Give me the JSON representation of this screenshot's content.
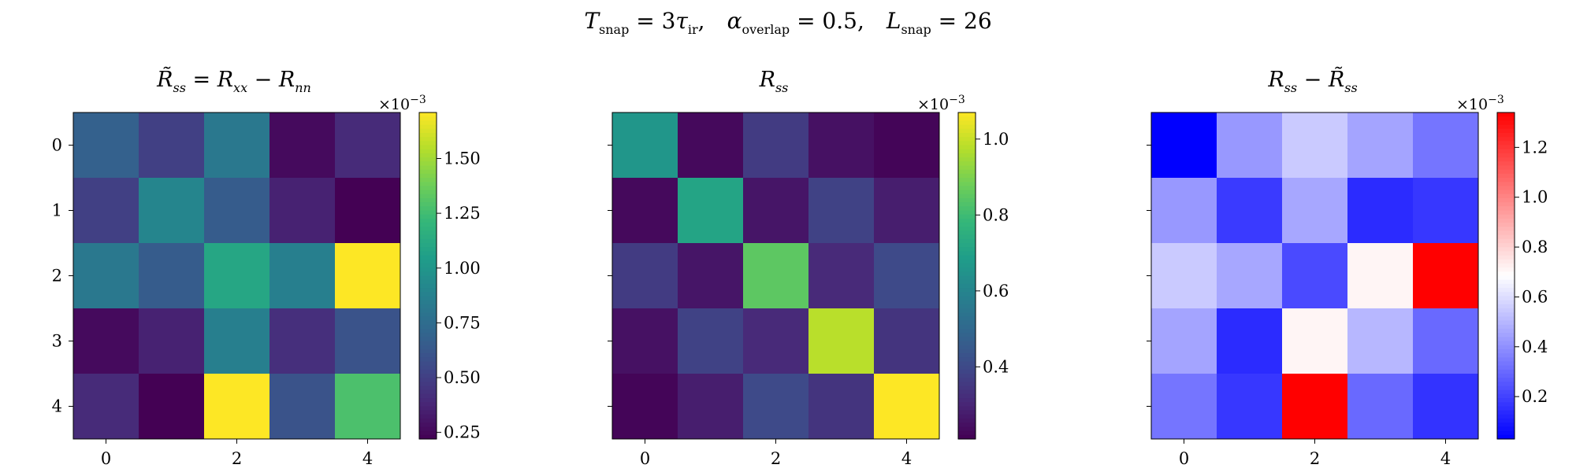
{
  "figure": {
    "suptitle": {
      "t_var": "T",
      "t_sub": "snap",
      "t_eq": " = 3",
      "tau_var": "τ",
      "tau_sub": "ir",
      "t_sep": ",",
      "a_var": "α",
      "a_sub": "overlap",
      "a_eq": " = 0.5",
      "a_sep": ",",
      "l_var": "L",
      "l_sub": "snap",
      "l_eq": " = 26"
    }
  },
  "chart_data": [
    {
      "type": "heatmap",
      "title_parts": {
        "r1": "R̃",
        "r1_sub": "ss",
        "eq": " = ",
        "r2": "R",
        "r2_sub": "xx",
        "minus": " − ",
        "r3": "R",
        "r3_sub": "nn"
      },
      "colormap": "viridis",
      "vmin": 0.22,
      "vmax": 1.71,
      "exponent": {
        "base": "×10",
        "sup": "−3"
      },
      "cbar_ticks": [
        0.25,
        0.5,
        0.75,
        1.0,
        1.25,
        1.5
      ],
      "cbar_tick_labels": [
        "0.25",
        "0.50",
        "0.75",
        "1.00",
        "1.25",
        "1.50"
      ],
      "x_ticks": [
        0,
        2,
        4
      ],
      "x_tick_labels": [
        "0",
        "2",
        "4"
      ],
      "y_ticks": [
        0,
        1,
        2,
        3,
        4
      ],
      "y_tick_labels": [
        "0",
        "1",
        "2",
        "3",
        "4"
      ],
      "show_y_tick_labels": true,
      "values": [
        [
          0.68,
          0.5,
          0.82,
          0.26,
          0.4
        ],
        [
          0.5,
          0.9,
          0.65,
          0.36,
          0.22
        ],
        [
          0.82,
          0.65,
          1.1,
          0.86,
          1.71
        ],
        [
          0.26,
          0.36,
          0.86,
          0.42,
          0.6
        ],
        [
          0.4,
          0.22,
          1.71,
          0.6,
          1.28
        ]
      ]
    },
    {
      "type": "heatmap",
      "title_parts": {
        "r1": "R",
        "r1_sub": "ss"
      },
      "colormap": "viridis",
      "vmin": 0.21,
      "vmax": 1.07,
      "exponent": {
        "base": "×10",
        "sup": "−3"
      },
      "cbar_ticks": [
        0.4,
        0.6,
        0.8,
        1.0
      ],
      "cbar_tick_labels": [
        "0.4",
        "0.6",
        "0.8",
        "1.0"
      ],
      "x_ticks": [
        0,
        2,
        4
      ],
      "x_tick_labels": [
        "0",
        "2",
        "4"
      ],
      "y_ticks": [
        0,
        1,
        2,
        3,
        4
      ],
      "y_tick_labels": [
        "0",
        "1",
        "2",
        "3",
        "4"
      ],
      "show_y_tick_labels": false,
      "values": [
        [
          0.66,
          0.23,
          0.36,
          0.25,
          0.22
        ],
        [
          0.23,
          0.71,
          0.26,
          0.38,
          0.28
        ],
        [
          0.36,
          0.26,
          0.85,
          0.31,
          0.4
        ],
        [
          0.25,
          0.38,
          0.31,
          0.98,
          0.34
        ],
        [
          0.22,
          0.28,
          0.4,
          0.34,
          1.07
        ]
      ]
    },
    {
      "type": "heatmap",
      "title_parts": {
        "r1": "R",
        "r1_sub": "ss",
        "minus": " − ",
        "r2": "R̃",
        "r2_sub": "ss"
      },
      "colormap": "bwr",
      "vmin": 0.03,
      "vmax": 1.34,
      "exponent": {
        "base": "×10",
        "sup": "−3"
      },
      "cbar_ticks": [
        0.2,
        0.4,
        0.6,
        0.8,
        1.0,
        1.2
      ],
      "cbar_tick_labels": [
        "0.2",
        "0.4",
        "0.6",
        "0.8",
        "1.0",
        "1.2"
      ],
      "x_ticks": [
        0,
        2,
        4
      ],
      "x_tick_labels": [
        "0",
        "2",
        "4"
      ],
      "y_ticks": [
        0,
        1,
        2,
        3,
        4
      ],
      "y_tick_labels": [
        "0",
        "1",
        "2",
        "3",
        "4"
      ],
      "show_y_tick_labels": false,
      "values": [
        [
          0.03,
          0.42,
          0.55,
          0.45,
          0.33
        ],
        [
          0.42,
          0.18,
          0.46,
          0.14,
          0.17
        ],
        [
          0.55,
          0.46,
          0.22,
          0.71,
          1.34
        ],
        [
          0.45,
          0.14,
          0.71,
          0.5,
          0.3
        ],
        [
          0.33,
          0.17,
          1.34,
          0.3,
          0.16
        ]
      ]
    }
  ]
}
